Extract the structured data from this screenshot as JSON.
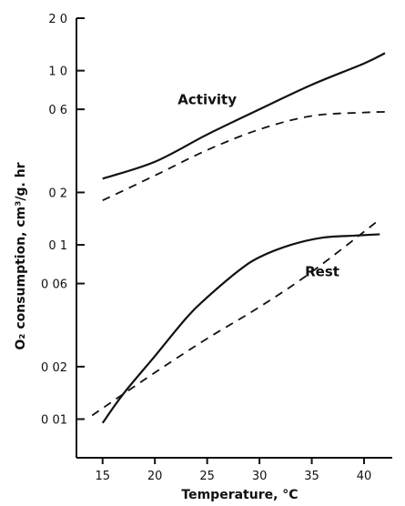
{
  "chart_data": {
    "type": "line",
    "xlabel": "Temperature,  °C",
    "ylabel": "O₂ consumption,  cm³/g. hr",
    "y_scale": "log",
    "grid": false,
    "xlim": [
      12.5,
      42
    ],
    "ylim": [
      0.006,
      2.0
    ],
    "x_ticks": [
      15,
      20,
      25,
      30,
      35,
      40
    ],
    "x_tick_labels": [
      "15",
      "20",
      "25",
      "30",
      "35",
      "40"
    ],
    "y_ticks": [
      0.01,
      0.02,
      0.06,
      0.1,
      0.2,
      0.6,
      1.0,
      2.0
    ],
    "y_tick_labels": [
      "0 01",
      "0 02",
      "0 06",
      "0 1",
      "0 2",
      "0 6",
      "1 0",
      "2 0"
    ],
    "annotations": [
      {
        "text": "Activity",
        "x": 25,
        "y": 0.64
      },
      {
        "text": "Rest",
        "x": 36,
        "y": 0.066
      }
    ],
    "series": [
      {
        "style": "solid",
        "group": "Activity",
        "x": [
          15,
          20,
          25,
          30,
          35,
          40,
          42
        ],
        "y": [
          0.24,
          0.3,
          0.43,
          0.6,
          0.83,
          1.1,
          1.26
        ]
      },
      {
        "style": "dashed",
        "group": "Activity",
        "x": [
          15,
          20,
          25,
          30,
          35,
          40,
          42
        ],
        "y": [
          0.18,
          0.25,
          0.35,
          0.46,
          0.55,
          0.575,
          0.58
        ]
      },
      {
        "style": "solid",
        "group": "Rest",
        "x": [
          15,
          17,
          20,
          23,
          25,
          28,
          30,
          33,
          36,
          39,
          41.5
        ],
        "y": [
          0.0095,
          0.014,
          0.023,
          0.038,
          0.05,
          0.071,
          0.085,
          0.1,
          0.11,
          0.113,
          0.115
        ]
      },
      {
        "style": "dashed",
        "group": "Rest",
        "x": [
          14,
          20,
          25,
          30,
          35,
          41.5
        ],
        "y": [
          0.0105,
          0.0185,
          0.029,
          0.044,
          0.07,
          0.14
        ]
      }
    ]
  }
}
